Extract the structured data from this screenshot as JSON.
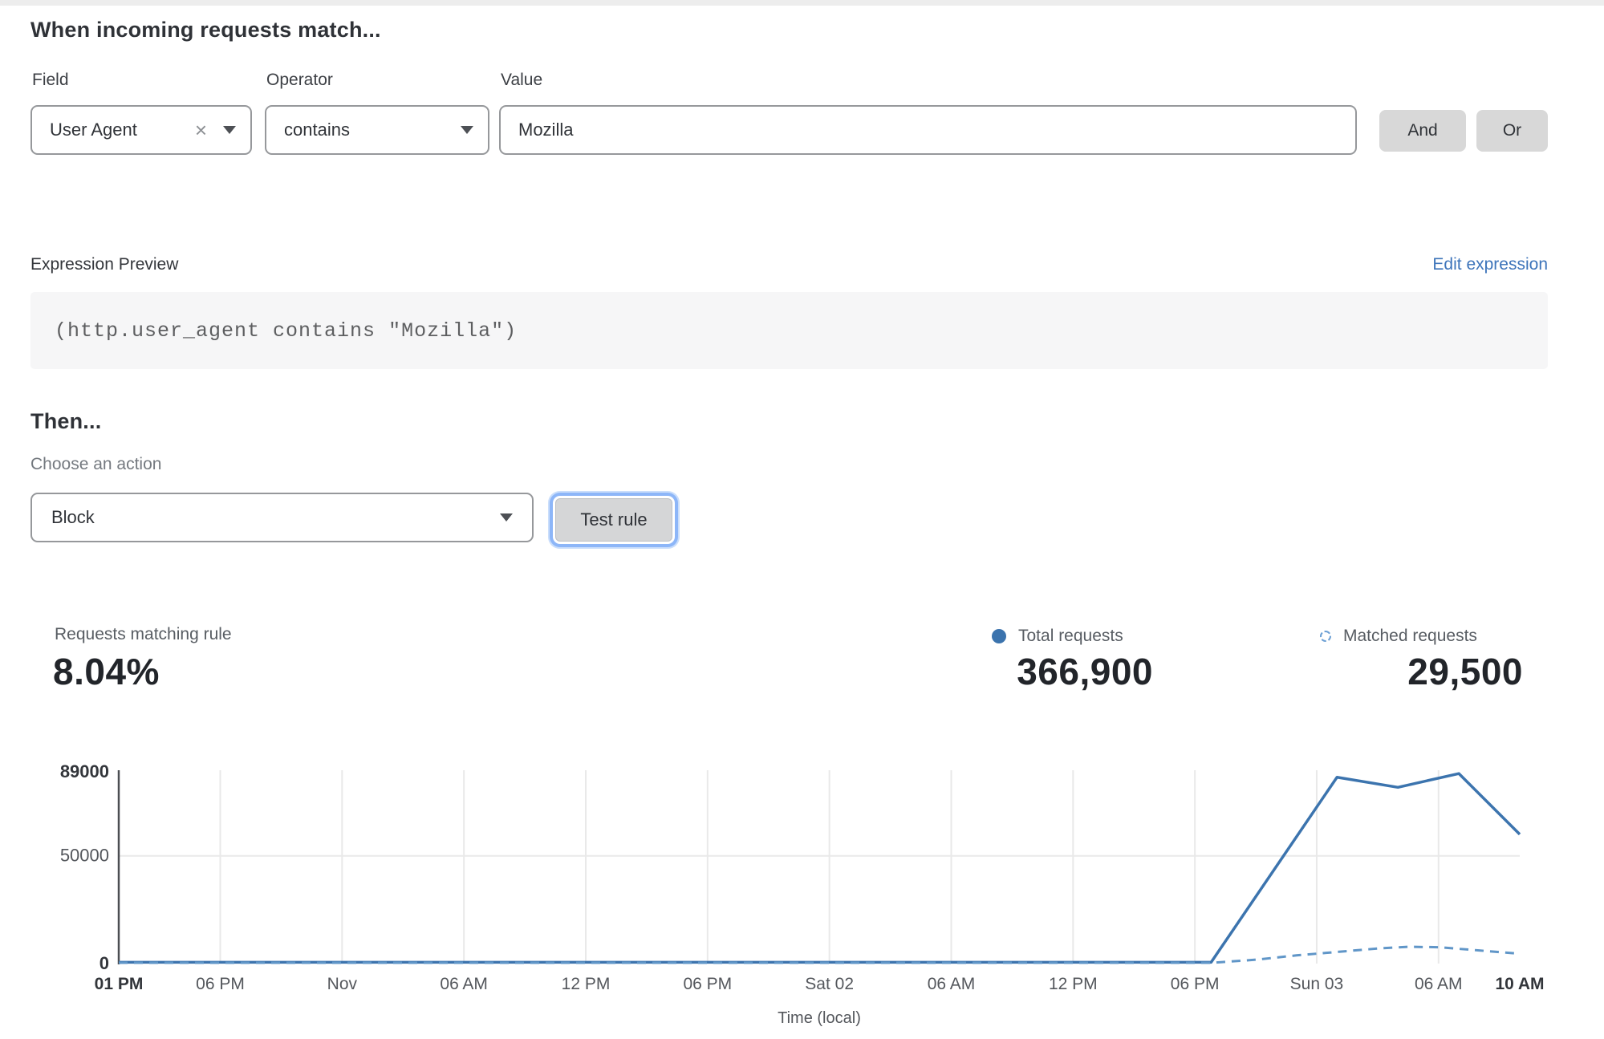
{
  "header": {
    "title": "When incoming requests match..."
  },
  "rule_builder": {
    "field": {
      "label": "Field",
      "value": "User Agent"
    },
    "operator": {
      "label": "Operator",
      "value": "contains"
    },
    "value": {
      "label": "Value",
      "value": "Mozilla"
    },
    "and_label": "And",
    "or_label": "Or"
  },
  "expression": {
    "preview_label": "Expression Preview",
    "edit_link": "Edit expression",
    "code": "(http.user_agent contains \"Mozilla\")"
  },
  "action": {
    "then_label": "Then...",
    "choose_label": "Choose an action",
    "selected_action": "Block",
    "test_button_label": "Test rule"
  },
  "stats": {
    "matching": {
      "label": "Requests matching rule",
      "value": "8.04%"
    },
    "total": {
      "label": "Total requests",
      "value": "366,900",
      "marker": "solid-dot"
    },
    "matched": {
      "label": "Matched requests",
      "value": "29,500",
      "marker": "dashed-circle"
    }
  },
  "icons": {
    "clear": "×"
  },
  "colors": {
    "line_total": "#3c74ae",
    "line_matched": "#6096c8",
    "link_blue": "#3d74ba",
    "grid": "#e9e9e9",
    "axis": "#4b4e52",
    "tick_bold": "#33363b",
    "tick_regular": "#54575c",
    "focus_ring": "#8db6f8"
  },
  "chart_data": {
    "type": "line",
    "title": "",
    "xlabel": "Time (local)",
    "ylabel": "",
    "ylim": [
      0,
      89000
    ],
    "x_hours_span": 69,
    "grid": "vertical ticks + horizontal at 50000",
    "legend_position": "top-right (above chart)",
    "y_ticks": [
      {
        "value": 0,
        "label": "0",
        "bold": true
      },
      {
        "value": 50000,
        "label": "50000",
        "bold": false
      },
      {
        "value": 89000,
        "label": "89000",
        "bold": true
      }
    ],
    "x_ticks": [
      {
        "hour": 0,
        "label": "01 PM",
        "bold": true,
        "grid": false
      },
      {
        "hour": 5,
        "label": "06 PM",
        "bold": false,
        "grid": true
      },
      {
        "hour": 11,
        "label": "Nov",
        "bold": false,
        "grid": true
      },
      {
        "hour": 17,
        "label": "06 AM",
        "bold": false,
        "grid": true
      },
      {
        "hour": 23,
        "label": "12 PM",
        "bold": false,
        "grid": true
      },
      {
        "hour": 29,
        "label": "06 PM",
        "bold": false,
        "grid": true
      },
      {
        "hour": 35,
        "label": "Sat 02",
        "bold": false,
        "grid": true
      },
      {
        "hour": 41,
        "label": "06 AM",
        "bold": false,
        "grid": true
      },
      {
        "hour": 47,
        "label": "12 PM",
        "bold": false,
        "grid": true
      },
      {
        "hour": 53,
        "label": "06 PM",
        "bold": false,
        "grid": true
      },
      {
        "hour": 59,
        "label": "Sun 03",
        "bold": false,
        "grid": true
      },
      {
        "hour": 65,
        "label": "06 AM",
        "bold": false,
        "grid": true
      },
      {
        "hour": 69,
        "label": "10 AM",
        "bold": true,
        "grid": false
      }
    ],
    "series": [
      {
        "name": "Total requests",
        "style": "solid",
        "color": "#3c74ae",
        "points": [
          [
            0,
            600
          ],
          [
            6,
            600
          ],
          [
            12,
            600
          ],
          [
            18,
            600
          ],
          [
            24,
            600
          ],
          [
            30,
            600
          ],
          [
            36,
            600
          ],
          [
            42,
            600
          ],
          [
            48,
            600
          ],
          [
            53.8,
            600
          ],
          [
            60,
            86500
          ],
          [
            63,
            81800
          ],
          [
            66,
            88200
          ],
          [
            69,
            60000
          ]
        ]
      },
      {
        "name": "Matched requests",
        "style": "dashed",
        "color": "#6096c8",
        "points": [
          [
            0,
            350
          ],
          [
            10,
            350
          ],
          [
            20,
            350
          ],
          [
            30,
            350
          ],
          [
            40,
            350
          ],
          [
            50,
            350
          ],
          [
            53.8,
            350
          ],
          [
            56,
            1800
          ],
          [
            58,
            3800
          ],
          [
            60,
            5400
          ],
          [
            62,
            7000
          ],
          [
            63.5,
            7800
          ],
          [
            65,
            7600
          ],
          [
            67,
            6100
          ],
          [
            69,
            4600
          ]
        ]
      }
    ]
  }
}
